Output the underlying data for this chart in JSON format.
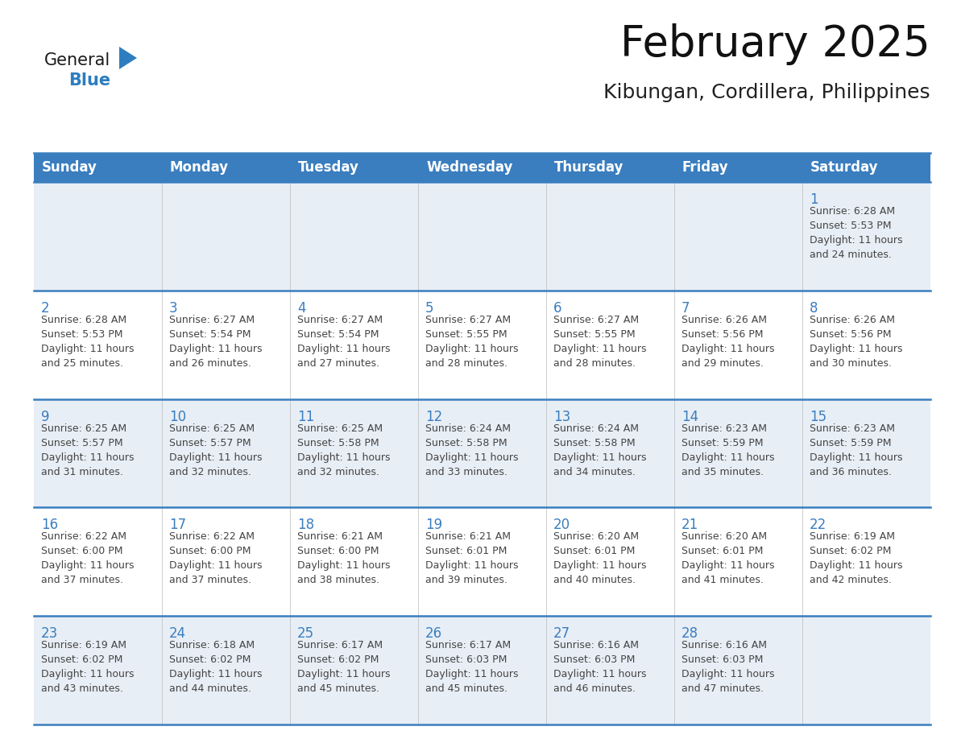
{
  "title": "February 2025",
  "subtitle": "Kibungan, Cordillera, Philippines",
  "days_of_week": [
    "Sunday",
    "Monday",
    "Tuesday",
    "Wednesday",
    "Thursday",
    "Friday",
    "Saturday"
  ],
  "header_bg": "#3a7ebf",
  "header_text": "#ffffff",
  "row_bg_odd": "#e8eef5",
  "row_bg_even": "#ffffff",
  "separator_color": "#3a7ebf",
  "day_num_color": "#3a7ebf",
  "text_color": "#444444",
  "logo_general_color": "#1a1a1a",
  "logo_blue_color": "#2e7dbf",
  "logo_triangle_color": "#2e7dbf",
  "calendar_data": [
    [
      null,
      null,
      null,
      null,
      null,
      null,
      {
        "day": "1",
        "sunrise": "6:28 AM",
        "sunset": "5:53 PM",
        "daylight_h": "11 hours",
        "daylight_m": "and 24 minutes."
      }
    ],
    [
      {
        "day": "2",
        "sunrise": "6:28 AM",
        "sunset": "5:53 PM",
        "daylight_h": "11 hours",
        "daylight_m": "and 25 minutes."
      },
      {
        "day": "3",
        "sunrise": "6:27 AM",
        "sunset": "5:54 PM",
        "daylight_h": "11 hours",
        "daylight_m": "and 26 minutes."
      },
      {
        "day": "4",
        "sunrise": "6:27 AM",
        "sunset": "5:54 PM",
        "daylight_h": "11 hours",
        "daylight_m": "and 27 minutes."
      },
      {
        "day": "5",
        "sunrise": "6:27 AM",
        "sunset": "5:55 PM",
        "daylight_h": "11 hours",
        "daylight_m": "and 28 minutes."
      },
      {
        "day": "6",
        "sunrise": "6:27 AM",
        "sunset": "5:55 PM",
        "daylight_h": "11 hours",
        "daylight_m": "and 28 minutes."
      },
      {
        "day": "7",
        "sunrise": "6:26 AM",
        "sunset": "5:56 PM",
        "daylight_h": "11 hours",
        "daylight_m": "and 29 minutes."
      },
      {
        "day": "8",
        "sunrise": "6:26 AM",
        "sunset": "5:56 PM",
        "daylight_h": "11 hours",
        "daylight_m": "and 30 minutes."
      }
    ],
    [
      {
        "day": "9",
        "sunrise": "6:25 AM",
        "sunset": "5:57 PM",
        "daylight_h": "11 hours",
        "daylight_m": "and 31 minutes."
      },
      {
        "day": "10",
        "sunrise": "6:25 AM",
        "sunset": "5:57 PM",
        "daylight_h": "11 hours",
        "daylight_m": "and 32 minutes."
      },
      {
        "day": "11",
        "sunrise": "6:25 AM",
        "sunset": "5:58 PM",
        "daylight_h": "11 hours",
        "daylight_m": "and 32 minutes."
      },
      {
        "day": "12",
        "sunrise": "6:24 AM",
        "sunset": "5:58 PM",
        "daylight_h": "11 hours",
        "daylight_m": "and 33 minutes."
      },
      {
        "day": "13",
        "sunrise": "6:24 AM",
        "sunset": "5:58 PM",
        "daylight_h": "11 hours",
        "daylight_m": "and 34 minutes."
      },
      {
        "day": "14",
        "sunrise": "6:23 AM",
        "sunset": "5:59 PM",
        "daylight_h": "11 hours",
        "daylight_m": "and 35 minutes."
      },
      {
        "day": "15",
        "sunrise": "6:23 AM",
        "sunset": "5:59 PM",
        "daylight_h": "11 hours",
        "daylight_m": "and 36 minutes."
      }
    ],
    [
      {
        "day": "16",
        "sunrise": "6:22 AM",
        "sunset": "6:00 PM",
        "daylight_h": "11 hours",
        "daylight_m": "and 37 minutes."
      },
      {
        "day": "17",
        "sunrise": "6:22 AM",
        "sunset": "6:00 PM",
        "daylight_h": "11 hours",
        "daylight_m": "and 37 minutes."
      },
      {
        "day": "18",
        "sunrise": "6:21 AM",
        "sunset": "6:00 PM",
        "daylight_h": "11 hours",
        "daylight_m": "and 38 minutes."
      },
      {
        "day": "19",
        "sunrise": "6:21 AM",
        "sunset": "6:01 PM",
        "daylight_h": "11 hours",
        "daylight_m": "and 39 minutes."
      },
      {
        "day": "20",
        "sunrise": "6:20 AM",
        "sunset": "6:01 PM",
        "daylight_h": "11 hours",
        "daylight_m": "and 40 minutes."
      },
      {
        "day": "21",
        "sunrise": "6:20 AM",
        "sunset": "6:01 PM",
        "daylight_h": "11 hours",
        "daylight_m": "and 41 minutes."
      },
      {
        "day": "22",
        "sunrise": "6:19 AM",
        "sunset": "6:02 PM",
        "daylight_h": "11 hours",
        "daylight_m": "and 42 minutes."
      }
    ],
    [
      {
        "day": "23",
        "sunrise": "6:19 AM",
        "sunset": "6:02 PM",
        "daylight_h": "11 hours",
        "daylight_m": "and 43 minutes."
      },
      {
        "day": "24",
        "sunrise": "6:18 AM",
        "sunset": "6:02 PM",
        "daylight_h": "11 hours",
        "daylight_m": "and 44 minutes."
      },
      {
        "day": "25",
        "sunrise": "6:17 AM",
        "sunset": "6:02 PM",
        "daylight_h": "11 hours",
        "daylight_m": "and 45 minutes."
      },
      {
        "day": "26",
        "sunrise": "6:17 AM",
        "sunset": "6:03 PM",
        "daylight_h": "11 hours",
        "daylight_m": "and 45 minutes."
      },
      {
        "day": "27",
        "sunrise": "6:16 AM",
        "sunset": "6:03 PM",
        "daylight_h": "11 hours",
        "daylight_m": "and 46 minutes."
      },
      {
        "day": "28",
        "sunrise": "6:16 AM",
        "sunset": "6:03 PM",
        "daylight_h": "11 hours",
        "daylight_m": "and 47 minutes."
      },
      null
    ]
  ]
}
